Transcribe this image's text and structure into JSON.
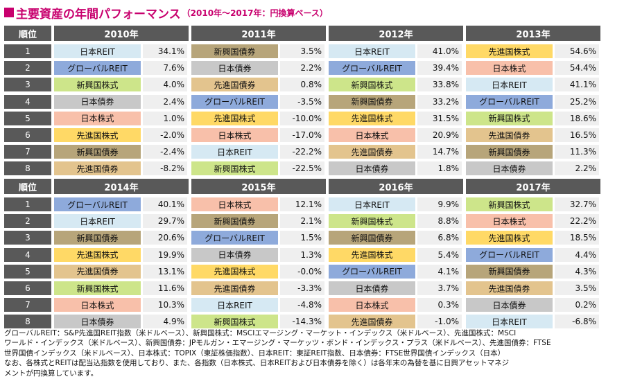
{
  "title": {
    "main": "主要資産の年間パフォーマンス",
    "sub": "（2010年～2017年：円換算ベース）",
    "square_color": "#c8006e"
  },
  "rank_header": "順位",
  "colors": {
    "日本REIT": "#d6e9f3",
    "グローバルREIT": "#8eaadb",
    "新興国株式": "#cde58a",
    "日本債券": "#c8c8c8",
    "日本株式": "#f8c0aa",
    "先進国株式": "#ffd966",
    "新興国債券": "#b7a57a",
    "先進国債券": "#e3c48e",
    "value_bg": "#efefef",
    "header_bg": "#595959"
  },
  "chart_data": {
    "type": "table",
    "columns": [
      {
        "year": "2010年",
        "rows": [
          {
            "rank": "1",
            "asset": "日本REIT",
            "value": "34.1%"
          },
          {
            "rank": "2",
            "asset": "グローバルREIT",
            "value": "7.6%"
          },
          {
            "rank": "3",
            "asset": "新興国株式",
            "value": "4.0%"
          },
          {
            "rank": "4",
            "asset": "日本債券",
            "value": "2.4%"
          },
          {
            "rank": "5",
            "asset": "日本株式",
            "value": "1.0%"
          },
          {
            "rank": "6",
            "asset": "先進国株式",
            "value": "-2.0%"
          },
          {
            "rank": "7",
            "asset": "新興国債券",
            "value": "-2.4%"
          },
          {
            "rank": "8",
            "asset": "先進国債券",
            "value": "-8.2%"
          }
        ]
      },
      {
        "year": "2011年",
        "rows": [
          {
            "rank": "1",
            "asset": "新興国債券",
            "value": "3.5%"
          },
          {
            "rank": "2",
            "asset": "日本債券",
            "value": "2.2%"
          },
          {
            "rank": "3",
            "asset": "先進国債券",
            "value": "0.8%"
          },
          {
            "rank": "4",
            "asset": "グローバルREIT",
            "value": "-3.5%"
          },
          {
            "rank": "5",
            "asset": "先進国株式",
            "value": "-10.0%"
          },
          {
            "rank": "6",
            "asset": "日本株式",
            "value": "-17.0%"
          },
          {
            "rank": "7",
            "asset": "日本REIT",
            "value": "-22.2%"
          },
          {
            "rank": "8",
            "asset": "新興国株式",
            "value": "-22.5%"
          }
        ]
      },
      {
        "year": "2012年",
        "rows": [
          {
            "rank": "1",
            "asset": "日本REIT",
            "value": "41.0%"
          },
          {
            "rank": "2",
            "asset": "グローバルREIT",
            "value": "39.4%"
          },
          {
            "rank": "3",
            "asset": "新興国株式",
            "value": "33.8%"
          },
          {
            "rank": "4",
            "asset": "新興国債券",
            "value": "33.2%"
          },
          {
            "rank": "5",
            "asset": "先進国株式",
            "value": "31.5%"
          },
          {
            "rank": "6",
            "asset": "日本株式",
            "value": "20.9%"
          },
          {
            "rank": "7",
            "asset": "先進国債券",
            "value": "14.7%"
          },
          {
            "rank": "8",
            "asset": "日本債券",
            "value": "1.8%"
          }
        ]
      },
      {
        "year": "2013年",
        "rows": [
          {
            "rank": "1",
            "asset": "先進国株式",
            "value": "54.6%"
          },
          {
            "rank": "2",
            "asset": "日本株式",
            "value": "54.4%"
          },
          {
            "rank": "3",
            "asset": "日本REIT",
            "value": "41.1%"
          },
          {
            "rank": "4",
            "asset": "グローバルREIT",
            "value": "25.2%"
          },
          {
            "rank": "5",
            "asset": "新興国株式",
            "value": "18.6%"
          },
          {
            "rank": "6",
            "asset": "先進国債券",
            "value": "16.5%"
          },
          {
            "rank": "7",
            "asset": "新興国債券",
            "value": "11.3%"
          },
          {
            "rank": "8",
            "asset": "日本債券",
            "value": "2.2%"
          }
        ]
      },
      {
        "year": "2014年",
        "rows": [
          {
            "rank": "1",
            "asset": "グローバルREIT",
            "value": "40.1%"
          },
          {
            "rank": "2",
            "asset": "日本REIT",
            "value": "29.7%"
          },
          {
            "rank": "3",
            "asset": "新興国債券",
            "value": "20.6%"
          },
          {
            "rank": "4",
            "asset": "先進国株式",
            "value": "19.9%"
          },
          {
            "rank": "5",
            "asset": "先進国債券",
            "value": "13.1%"
          },
          {
            "rank": "6",
            "asset": "新興国株式",
            "value": "11.6%"
          },
          {
            "rank": "7",
            "asset": "日本株式",
            "value": "10.3%"
          },
          {
            "rank": "8",
            "asset": "日本債券",
            "value": "4.9%"
          }
        ]
      },
      {
        "year": "2015年",
        "rows": [
          {
            "rank": "1",
            "asset": "日本株式",
            "value": "12.1%"
          },
          {
            "rank": "2",
            "asset": "新興国債券",
            "value": "2.1%"
          },
          {
            "rank": "3",
            "asset": "グローバルREIT",
            "value": "1.5%"
          },
          {
            "rank": "4",
            "asset": "日本債券",
            "value": "1.3%"
          },
          {
            "rank": "5",
            "asset": "先進国株式",
            "value": "-0.0%"
          },
          {
            "rank": "6",
            "asset": "先進国債券",
            "value": "-3.3%"
          },
          {
            "rank": "7",
            "asset": "日本REIT",
            "value": "-4.8%"
          },
          {
            "rank": "8",
            "asset": "新興国株式",
            "value": "-14.3%"
          }
        ]
      },
      {
        "year": "2016年",
        "rows": [
          {
            "rank": "1",
            "asset": "日本REIT",
            "value": "9.9%"
          },
          {
            "rank": "2",
            "asset": "新興国株式",
            "value": "8.8%"
          },
          {
            "rank": "3",
            "asset": "新興国債券",
            "value": "6.8%"
          },
          {
            "rank": "4",
            "asset": "先進国株式",
            "value": "5.4%"
          },
          {
            "rank": "5",
            "asset": "グローバルREIT",
            "value": "4.1%"
          },
          {
            "rank": "6",
            "asset": "日本債券",
            "value": "3.7%"
          },
          {
            "rank": "7",
            "asset": "日本株式",
            "value": "0.3%"
          },
          {
            "rank": "8",
            "asset": "先進国債券",
            "value": "-1.0%"
          }
        ]
      },
      {
        "year": "2017年",
        "rows": [
          {
            "rank": "1",
            "asset": "新興国株式",
            "value": "32.7%"
          },
          {
            "rank": "2",
            "asset": "日本株式",
            "value": "22.2%"
          },
          {
            "rank": "3",
            "asset": "先進国株式",
            "value": "18.5%"
          },
          {
            "rank": "4",
            "asset": "グローバルREIT",
            "value": "4.4%"
          },
          {
            "rank": "5",
            "asset": "新興国債券",
            "value": "4.3%"
          },
          {
            "rank": "6",
            "asset": "先進国債券",
            "value": "3.5%"
          },
          {
            "rank": "7",
            "asset": "日本債券",
            "value": "0.2%"
          },
          {
            "rank": "8",
            "asset": "日本REIT",
            "value": "-6.8%"
          }
        ]
      }
    ]
  },
  "footnote": [
    "グローバルREIT：S&P先進国REIT指数（米ドルベース）、新興国株式：MSCIエマージング・マーケット・インデックス（米ドルベース）、先進国株式：MSCI",
    "ワールド・インデックス（米ドルベース）、新興国債券：JPモルガン・エマージング・マーケッツ・ボンド・インデックス・プラス（米ドルベース）、先進国債券：FTSE",
    "世界国債インデックス（米ドルベース）、日本株式：TOPIX（東証株価指数）、日本REIT：東証REIT指数、日本債券：FTSE世界国債インデックス（日本）",
    "なお、各株式とREITは配当込指数を使用しており、また、各指数（日本株式、日本REITおよび日本債券を除く）は各年末の為替を基に日興アセットマネジ",
    "メントが円換算しています。"
  ]
}
